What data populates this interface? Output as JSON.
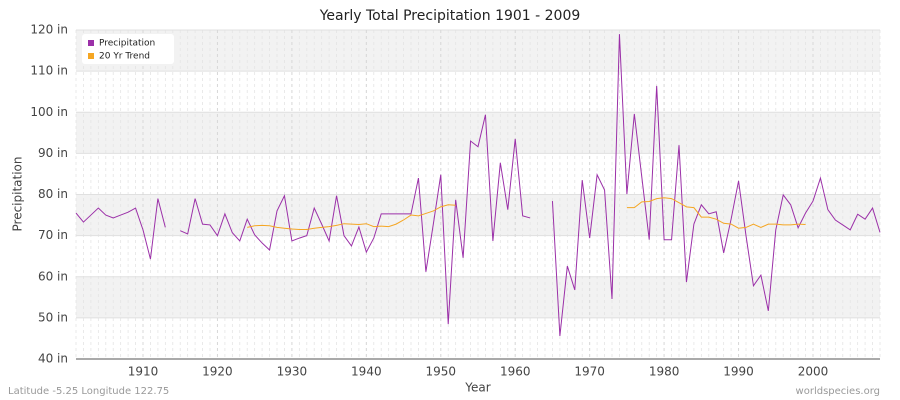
{
  "chart_data": {
    "type": "line",
    "title": "Yearly Total Precipitation 1901 - 2009",
    "x_label": "Year",
    "y_label": "Precipitation",
    "footer_left": "Latitude -5.25 Longitude 122.75",
    "footer_right": "worldspecies.org",
    "x": [
      1901,
      1902,
      1903,
      1904,
      1905,
      1906,
      1907,
      1908,
      1909,
      1910,
      1911,
      1912,
      1913,
      1914,
      1915,
      1916,
      1917,
      1918,
      1919,
      1920,
      1921,
      1922,
      1923,
      1924,
      1925,
      1926,
      1927,
      1928,
      1929,
      1930,
      1931,
      1932,
      1933,
      1934,
      1935,
      1936,
      1937,
      1938,
      1939,
      1940,
      1941,
      1942,
      1943,
      1944,
      1945,
      1946,
      1947,
      1948,
      1949,
      1950,
      1951,
      1952,
      1953,
      1954,
      1955,
      1956,
      1957,
      1958,
      1959,
      1960,
      1961,
      1962,
      1963,
      1964,
      1965,
      1966,
      1967,
      1968,
      1969,
      1970,
      1971,
      1972,
      1973,
      1974,
      1975,
      1976,
      1977,
      1978,
      1979,
      1980,
      1981,
      1982,
      1983,
      1984,
      1985,
      1986,
      1987,
      1988,
      1989,
      1990,
      1991,
      1992,
      1993,
      1994,
      1995,
      1996,
      1997,
      1998,
      1999,
      2000,
      2001,
      2002,
      2003,
      2004,
      2005,
      2006,
      2007,
      2008,
      2009
    ],
    "series": [
      {
        "name": "Precipitation",
        "color": "#9b30a8",
        "values": [
          75.5,
          73.3,
          75,
          76.7,
          75,
          74.3,
          75,
          75.7,
          76.7,
          71.4,
          64.3,
          79,
          72,
          null,
          71.2,
          70.4,
          79,
          72.8,
          72.6,
          70,
          75.3,
          70.7,
          68.7,
          74,
          70.2,
          68.2,
          66.5,
          76,
          79.7,
          68.7,
          69.4,
          70,
          76.7,
          72.8,
          68.7,
          79.7,
          70,
          67.5,
          72.1,
          66,
          69.4,
          75.3,
          75.3,
          75.3,
          75.3,
          75.3,
          84,
          61.2,
          72.8,
          84.8,
          48.5,
          78.7,
          64.6,
          93,
          91.6,
          99.4,
          68.7,
          87.7,
          76.3,
          93.5,
          74.8,
          74.3,
          null,
          null,
          78.4,
          45.6,
          62.6,
          56.8,
          83.5,
          69.4,
          84.8,
          81.1,
          54.6,
          119,
          80.1,
          99.6,
          84.3,
          69,
          106.4,
          69,
          69,
          92,
          58.7,
          72.8,
          77.5,
          75.3,
          75.8,
          65.8,
          74,
          83.3,
          70,
          57.8,
          60.4,
          51.7,
          71.4,
          79.9,
          77.5,
          71.9,
          75.5,
          78.4,
          84,
          76.3,
          73.8,
          72.6,
          71.4,
          75.2,
          74,
          76.7,
          70.8
        ]
      },
      {
        "name": "20 Yr Trend",
        "color": "#f5a623",
        "values": [
          null,
          null,
          null,
          null,
          null,
          null,
          null,
          null,
          null,
          null,
          null,
          null,
          null,
          null,
          null,
          null,
          null,
          null,
          null,
          null,
          null,
          null,
          null,
          72,
          72.4,
          72.5,
          72.4,
          72,
          71.8,
          71.6,
          71.5,
          71.5,
          71.8,
          72,
          72.2,
          72.5,
          72.9,
          72.8,
          72.7,
          72.9,
          72.2,
          72.3,
          72.2,
          72.8,
          73.8,
          75,
          74.8,
          75.4,
          76,
          77,
          77.5,
          77.4,
          null,
          null,
          null,
          null,
          null,
          null,
          null,
          null,
          null,
          null,
          null,
          null,
          null,
          null,
          null,
          null,
          null,
          null,
          null,
          null,
          null,
          null,
          76.8,
          76.8,
          78.2,
          78.3,
          79,
          79.2,
          79,
          78,
          77,
          76.8,
          74.5,
          74.5,
          74,
          73,
          72.8,
          71.8,
          72,
          72.8,
          72,
          72.8,
          72.8,
          72.6,
          72.6,
          72.8,
          72.7,
          null,
          null,
          null,
          null,
          null,
          null,
          null,
          null,
          null,
          null
        ]
      }
    ],
    "xlim": [
      1901,
      2009
    ],
    "xticks": [
      1910,
      1920,
      1930,
      1940,
      1950,
      1960,
      1970,
      1980,
      1990,
      2000
    ],
    "ylim": [
      40,
      120
    ],
    "yticks": [
      {
        "value": 40,
        "label": "40 in"
      },
      {
        "value": 50,
        "label": "50 in"
      },
      {
        "value": 60,
        "label": "60 in"
      },
      {
        "value": 70,
        "label": "70 in"
      },
      {
        "value": 80,
        "label": "80 in"
      },
      {
        "value": 90,
        "label": "90 in"
      },
      {
        "value": 100,
        "label": "100 in"
      },
      {
        "value": 110,
        "label": "110 in"
      },
      {
        "value": 120,
        "label": "120 in"
      }
    ],
    "grid": true,
    "legend": "top-left"
  }
}
